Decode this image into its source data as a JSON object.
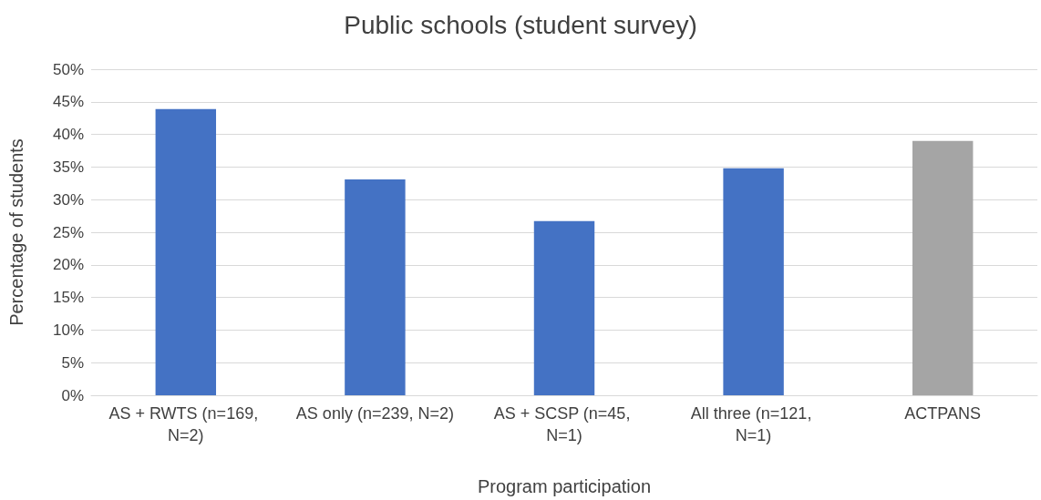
{
  "chart_data": {
    "type": "bar",
    "title": "Public schools (student survey)",
    "xlabel": "Program participation",
    "ylabel": "Percentage of students",
    "categories": [
      "AS + RWTS (n=169, N=2)",
      "AS only (n=239, N=2)",
      "AS + SCSP (n=45, N=1)",
      "All three (n=121, N=1)",
      "ACTPANS"
    ],
    "values": [
      43.9,
      33.1,
      26.7,
      34.8,
      39.0
    ],
    "colors": [
      "#4472c4",
      "#4472c4",
      "#4472c4",
      "#4472c4",
      "#a5a5a5"
    ],
    "ylim": [
      0,
      50
    ],
    "yticks": [
      {
        "value": 0,
        "label": "0%"
      },
      {
        "value": 5,
        "label": "5%"
      },
      {
        "value": 10,
        "label": "10%"
      },
      {
        "value": 15,
        "label": "15%"
      },
      {
        "value": 20,
        "label": "20%"
      },
      {
        "value": 25,
        "label": "25%"
      },
      {
        "value": 30,
        "label": "30%"
      },
      {
        "value": 35,
        "label": "35%"
      },
      {
        "value": 40,
        "label": "40%"
      },
      {
        "value": 45,
        "label": "45%"
      },
      {
        "value": 50,
        "label": "50%"
      }
    ],
    "grid": true
  }
}
